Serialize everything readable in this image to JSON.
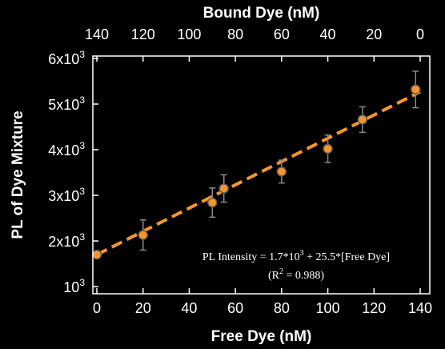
{
  "chart_data": {
    "type": "scatter",
    "xlabel": "Free Dye (nM)",
    "x2label": "Bound Dye (nM)",
    "ylabel": "PL of Dye Mixture",
    "xlim": [
      0,
      140
    ],
    "ylim": [
      800,
      6000
    ],
    "x_ticks": [
      "0",
      "20",
      "40",
      "60",
      "80",
      "100",
      "120",
      "140"
    ],
    "x2_ticks": [
      "140",
      "120",
      "100",
      "80",
      "60",
      "40",
      "20",
      "0"
    ],
    "y_ticks": [
      {
        "mantissa": "10",
        "exp": "3"
      },
      {
        "mantissa": "2x10",
        "exp": "3"
      },
      {
        "mantissa": "3x10",
        "exp": "3"
      },
      {
        "mantissa": "4x10",
        "exp": "3"
      },
      {
        "mantissa": "5x10",
        "exp": "3"
      },
      {
        "mantissa": "6x10",
        "exp": "3"
      }
    ],
    "y_tick_values": [
      1000,
      2000,
      3000,
      4000,
      5000,
      6000
    ],
    "points": [
      {
        "x": 0,
        "y": 1700,
        "err": 60
      },
      {
        "x": 20,
        "y": 2130,
        "err": 330
      },
      {
        "x": 50,
        "y": 2840,
        "err": 320
      },
      {
        "x": 55,
        "y": 3150,
        "err": 300
      },
      {
        "x": 80,
        "y": 3520,
        "err": 250
      },
      {
        "x": 100,
        "y": 4020,
        "err": 300
      },
      {
        "x": 115,
        "y": 4660,
        "err": 280
      },
      {
        "x": 138,
        "y": 5320,
        "err": 400
      }
    ],
    "fit": {
      "intercept": 1700,
      "slope": 25.5,
      "x_range": [
        0,
        140
      ]
    },
    "annotation_line1": "PL Intensity = 1.7*10",
    "annotation_line1_sup": "3",
    "annotation_line1_rest": " + 25.5*[Free Dye]",
    "annotation_line2": "(R",
    "annotation_line2_sup": "2",
    "annotation_line2_rest": " = 0.988)",
    "colors": {
      "background": "#000000",
      "fit_line": "#f7962b",
      "marker_fill": "#f7962b",
      "marker_stroke": "#5a5a5a",
      "errorbar": "#8a8a8a",
      "axes": "#ffffff"
    }
  }
}
